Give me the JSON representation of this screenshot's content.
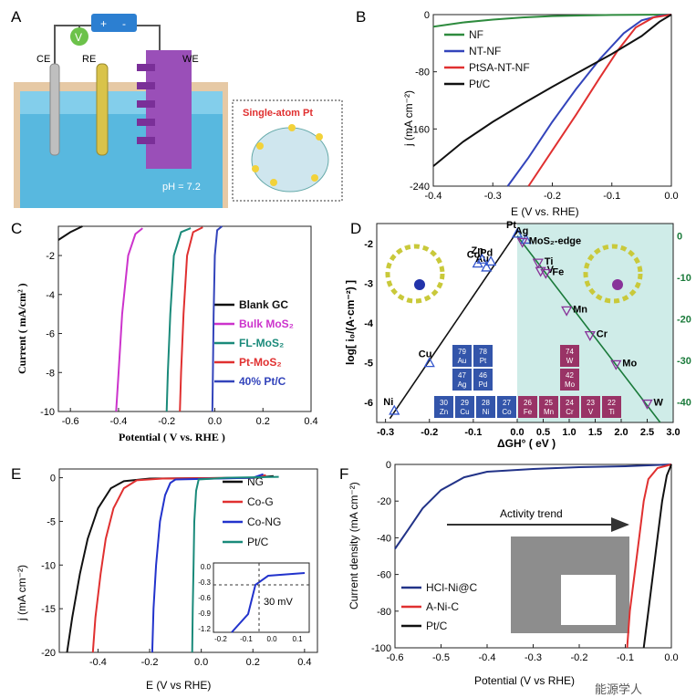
{
  "panels_labels": [
    "A",
    "B",
    "C",
    "D",
    "E",
    "F"
  ],
  "panel_a": {
    "ce": "CE",
    "re": "RE",
    "we": "WE",
    "v": "V",
    "plus": "+",
    "minus": "-",
    "single_atom": "Single-atom Pt",
    "ph": "pH = 7.2"
  },
  "chart_data": [
    {
      "id": "B",
      "type": "line",
      "xlabel": "E (V vs. RHE)",
      "ylabel": "j (mA cm⁻²)",
      "xlim": [
        -0.4,
        0.0
      ],
      "ylim": [
        -240,
        0
      ],
      "xticks": [
        "-0.4",
        "-0.3",
        "-0.2",
        "-0.1",
        "0.0"
      ],
      "yticks": [
        "0",
        "-80",
        "-160",
        "-240"
      ],
      "series": [
        {
          "name": "NF",
          "color": "#2e8b3e",
          "points": [
            [
              -0.4,
              -17
            ],
            [
              -0.35,
              -11
            ],
            [
              -0.3,
              -7
            ],
            [
              -0.25,
              -4
            ],
            [
              -0.2,
              -2
            ],
            [
              -0.1,
              -0.5
            ],
            [
              0,
              0
            ]
          ]
        },
        {
          "name": "NT-NF",
          "color": "#3344bb",
          "points": [
            [
              -0.275,
              -240
            ],
            [
              -0.24,
              -200
            ],
            [
              -0.2,
              -150
            ],
            [
              -0.16,
              -104
            ],
            [
              -0.12,
              -62
            ],
            [
              -0.08,
              -26
            ],
            [
              -0.05,
              -8
            ],
            [
              -0.02,
              -1.5
            ],
            [
              0,
              0
            ]
          ]
        },
        {
          "name": "PtSA-NT-NF",
          "color": "#e03030",
          "points": [
            [
              -0.24,
              -240
            ],
            [
              -0.2,
              -190
            ],
            [
              -0.16,
              -140
            ],
            [
              -0.12,
              -88
            ],
            [
              -0.09,
              -50
            ],
            [
              -0.06,
              -18
            ],
            [
              -0.03,
              -4
            ],
            [
              0,
              0
            ]
          ]
        },
        {
          "name": "Pt/C",
          "color": "#111111",
          "points": [
            [
              -0.4,
              -212
            ],
            [
              -0.35,
              -178
            ],
            [
              -0.3,
              -150
            ],
            [
              -0.25,
              -125
            ],
            [
              -0.2,
              -101
            ],
            [
              -0.15,
              -78
            ],
            [
              -0.1,
              -55
            ],
            [
              -0.05,
              -30
            ],
            [
              -0.02,
              -10
            ],
            [
              0,
              0
            ]
          ]
        }
      ]
    },
    {
      "id": "C",
      "type": "line",
      "xlabel": "Potential ( V vs. RHE )",
      "ylabel": "Current ( mA/cm² )",
      "xlim": [
        -0.65,
        0.4
      ],
      "ylim": [
        -10,
        -0.5
      ],
      "xticks": [
        "-0.6",
        "-0.4",
        "-0.2",
        "0.0",
        "0.2",
        "0.4"
      ],
      "yticks": [
        "-2",
        "-4",
        "-6",
        "-8",
        "-10"
      ],
      "series": [
        {
          "name": "Blank GC",
          "color": "#111111",
          "points": [
            [
              -0.65,
              -1.2
            ],
            [
              -0.6,
              -0.8
            ],
            [
              -0.55,
              -0.5
            ]
          ]
        },
        {
          "name": "Bulk MoS₂",
          "color": "#cc33cc",
          "points": [
            [
              -0.41,
              -10
            ],
            [
              -0.4,
              -8
            ],
            [
              -0.385,
              -5
            ],
            [
              -0.36,
              -2
            ],
            [
              -0.33,
              -0.9
            ],
            [
              -0.3,
              -0.6
            ]
          ]
        },
        {
          "name": "FL-MoS₂",
          "color": "#1a8a7a",
          "points": [
            [
              -0.2,
              -10
            ],
            [
              -0.195,
              -8
            ],
            [
              -0.185,
              -5
            ],
            [
              -0.17,
              -2
            ],
            [
              -0.14,
              -0.8
            ],
            [
              -0.1,
              -0.6
            ]
          ]
        },
        {
          "name": "Pt-MoS₂",
          "color": "#e03030",
          "points": [
            [
              -0.145,
              -10
            ],
            [
              -0.14,
              -8
            ],
            [
              -0.13,
              -5
            ],
            [
              -0.115,
              -2
            ],
            [
              -0.09,
              -0.8
            ],
            [
              -0.05,
              -0.55
            ]
          ]
        },
        {
          "name": "40% Pt/C",
          "color": "#3344bb",
          "points": [
            [
              -0.01,
              -10
            ],
            [
              -0.008,
              -8
            ],
            [
              -0.005,
              -5
            ],
            [
              0.0,
              -2
            ],
            [
              0.01,
              -0.7
            ],
            [
              0.03,
              -0.5
            ]
          ]
        }
      ],
      "legend": [
        "Blank GC",
        "Bulk MoS2",
        "FL-MoS2",
        "Pt-MoS2",
        "40% Pt/C"
      ]
    },
    {
      "id": "D",
      "type": "scatter",
      "xlabel": "ΔGH° ( eV )",
      "ylabel": "log[ i₀/(A·cm⁻²) ]",
      "xlim": [
        -0.32,
        3.0
      ],
      "ylim": [
        -6.5,
        -1.5
      ],
      "xticks": [
        "-0.3",
        "-0.2",
        "-0.1",
        "0.0",
        "0.5",
        "1.0",
        "1.5",
        "2.0",
        "2.5",
        "3.0"
      ],
      "yticks": [
        "-2",
        "-3",
        "-4",
        "-5",
        "-6"
      ],
      "y2ticks": [
        "0",
        "-10",
        "-20",
        "-30",
        "-40"
      ],
      "points_left": [
        {
          "label": "Ni",
          "x": -0.28,
          "y": -6.2
        },
        {
          "label": "Cu",
          "x": -0.2,
          "y": -5.0
        },
        {
          "label": "Co",
          "x": -0.09,
          "y": -2.5
        },
        {
          "label": "Au",
          "x": -0.07,
          "y": -2.6
        },
        {
          "label": "Pd",
          "x": -0.06,
          "y": -2.45
        },
        {
          "label": "Zn",
          "x": -0.08,
          "y": -2.4
        },
        {
          "label": "Pt",
          "x": 0.0,
          "y": -1.75
        },
        {
          "label": "Ag",
          "x": 0.02,
          "y": -1.9
        }
      ],
      "points_right": [
        {
          "label": "MoS₂-edge",
          "x": 0.1,
          "y": -1.5
        },
        {
          "label": "Ti",
          "x": 0.4,
          "y": -6.5
        },
        {
          "label": "V",
          "x": 0.45,
          "y": -8.5
        },
        {
          "label": "Fe",
          "x": 0.55,
          "y": -9.0
        },
        {
          "label": "Mn",
          "x": 0.95,
          "y": -18.0
        },
        {
          "label": "Cr",
          "x": 1.4,
          "y": -24.0
        },
        {
          "label": "Mo",
          "x": 1.9,
          "y": -31.0
        },
        {
          "label": "W",
          "x": 2.5,
          "y": -40.5
        }
      ],
      "tiles": [
        {
          "n": "79",
          "s": "Au",
          "c": "#3355aa"
        },
        {
          "n": "78",
          "s": "Pt",
          "c": "#3355aa"
        },
        {
          "n": "47",
          "s": "Ag",
          "c": "#3355aa"
        },
        {
          "n": "46",
          "s": "Pd",
          "c": "#3355aa"
        },
        {
          "n": "30",
          "s": "Zn",
          "c": "#3355aa"
        },
        {
          "n": "29",
          "s": "Cu",
          "c": "#3355aa"
        },
        {
          "n": "28",
          "s": "Ni",
          "c": "#3355aa"
        },
        {
          "n": "27",
          "s": "Co",
          "c": "#3355aa"
        },
        {
          "n": "26",
          "s": "Fe",
          "c": "#993366"
        },
        {
          "n": "25",
          "s": "Mn",
          "c": "#993366"
        },
        {
          "n": "24",
          "s": "Cr",
          "c": "#993366"
        },
        {
          "n": "23",
          "s": "V",
          "c": "#993366"
        },
        {
          "n": "22",
          "s": "Ti",
          "c": "#993366"
        },
        {
          "n": "74",
          "s": "W",
          "c": "#993366"
        },
        {
          "n": "42",
          "s": "Mo",
          "c": "#993366"
        }
      ]
    },
    {
      "id": "E",
      "type": "line",
      "xlabel": "E (V vs RHE)",
      "ylabel": "j (mA cm⁻²)",
      "xlim": [
        -0.55,
        0.45
      ],
      "ylim": [
        -20,
        1
      ],
      "xticks": [
        "-0.4",
        "-0.2",
        "0.0",
        "0.2",
        "0.4"
      ],
      "yticks": [
        "0",
        "-5",
        "-10",
        "-15",
        "-20"
      ],
      "series": [
        {
          "name": "NG",
          "color": "#111111",
          "points": [
            [
              -0.52,
              -20
            ],
            [
              -0.5,
              -16
            ],
            [
              -0.47,
              -11
            ],
            [
              -0.44,
              -7
            ],
            [
              -0.4,
              -3.5
            ],
            [
              -0.35,
              -1.2
            ],
            [
              -0.3,
              -0.4
            ],
            [
              -0.2,
              -0.1
            ],
            [
              0.2,
              0
            ],
            [
              0.28,
              0.2
            ]
          ]
        },
        {
          "name": "Co-G",
          "color": "#e03030",
          "points": [
            [
              -0.42,
              -20
            ],
            [
              -0.41,
              -16
            ],
            [
              -0.39,
              -11
            ],
            [
              -0.37,
              -7
            ],
            [
              -0.34,
              -3.5
            ],
            [
              -0.3,
              -1.2
            ],
            [
              -0.25,
              -0.3
            ],
            [
              -0.15,
              -0.1
            ],
            [
              0.2,
              0
            ],
            [
              0.25,
              0.3
            ]
          ]
        },
        {
          "name": "Co-NG",
          "color": "#2233cc",
          "points": [
            [
              -0.19,
              -20
            ],
            [
              -0.185,
              -15
            ],
            [
              -0.175,
              -10
            ],
            [
              -0.16,
              -5
            ],
            [
              -0.14,
              -2
            ],
            [
              -0.12,
              -0.6
            ],
            [
              -0.1,
              -0.2
            ],
            [
              0.2,
              0
            ],
            [
              0.24,
              0.4
            ]
          ]
        },
        {
          "name": "Pt/C",
          "color": "#1a8a7a",
          "points": [
            [
              -0.035,
              -20
            ],
            [
              -0.033,
              -15
            ],
            [
              -0.03,
              -10
            ],
            [
              -0.027,
              -5
            ],
            [
              -0.02,
              -1.5
            ],
            [
              -0.01,
              -0.2
            ],
            [
              0.1,
              0
            ],
            [
              0.3,
              0.1
            ]
          ]
        }
      ],
      "inset": {
        "xticks": [
          "-0.2",
          "-0.1",
          "0.0",
          "0.1"
        ],
        "yticks": [
          "0.0",
          "-0.3",
          "-0.6",
          "-0.9",
          "-1.2"
        ],
        "annotation": "30 mV"
      }
    },
    {
      "id": "F",
      "type": "line",
      "xlabel": "Potential (V vs RHE)",
      "ylabel": "Current density (mA cm⁻²)",
      "xlim": [
        -0.6,
        0.0
      ],
      "ylim": [
        -100,
        0
      ],
      "xticks": [
        "-0.6",
        "-0.5",
        "-0.4",
        "-0.3",
        "-0.2",
        "-0.1",
        "0.0"
      ],
      "yticks": [
        "0",
        "-20",
        "-40",
        "-60",
        "-80",
        "-100"
      ],
      "series": [
        {
          "name": "HCl-Ni@C",
          "color": "#223388",
          "points": [
            [
              -0.6,
              -46
            ],
            [
              -0.57,
              -35
            ],
            [
              -0.54,
              -24
            ],
            [
              -0.5,
              -14
            ],
            [
              -0.45,
              -7
            ],
            [
              -0.4,
              -4
            ],
            [
              -0.3,
              -2.5
            ],
            [
              -0.2,
              -1.5
            ],
            [
              -0.1,
              -1
            ],
            [
              0,
              0
            ]
          ]
        },
        {
          "name": "A-Ni-C",
          "color": "#e03030",
          "points": [
            [
              -0.096,
              -100
            ],
            [
              -0.09,
              -80
            ],
            [
              -0.08,
              -60
            ],
            [
              -0.07,
              -40
            ],
            [
              -0.06,
              -20
            ],
            [
              -0.05,
              -8
            ],
            [
              -0.03,
              -2
            ],
            [
              0,
              0
            ]
          ]
        },
        {
          "name": "Pt/C",
          "color": "#111111",
          "points": [
            [
              -0.06,
              -100
            ],
            [
              -0.05,
              -80
            ],
            [
              -0.04,
              -60
            ],
            [
              -0.03,
              -40
            ],
            [
              -0.02,
              -20
            ],
            [
              -0.01,
              -6
            ],
            [
              0,
              0
            ]
          ]
        }
      ],
      "annotation": "Activity trend"
    }
  ],
  "watermark": "能源学人"
}
